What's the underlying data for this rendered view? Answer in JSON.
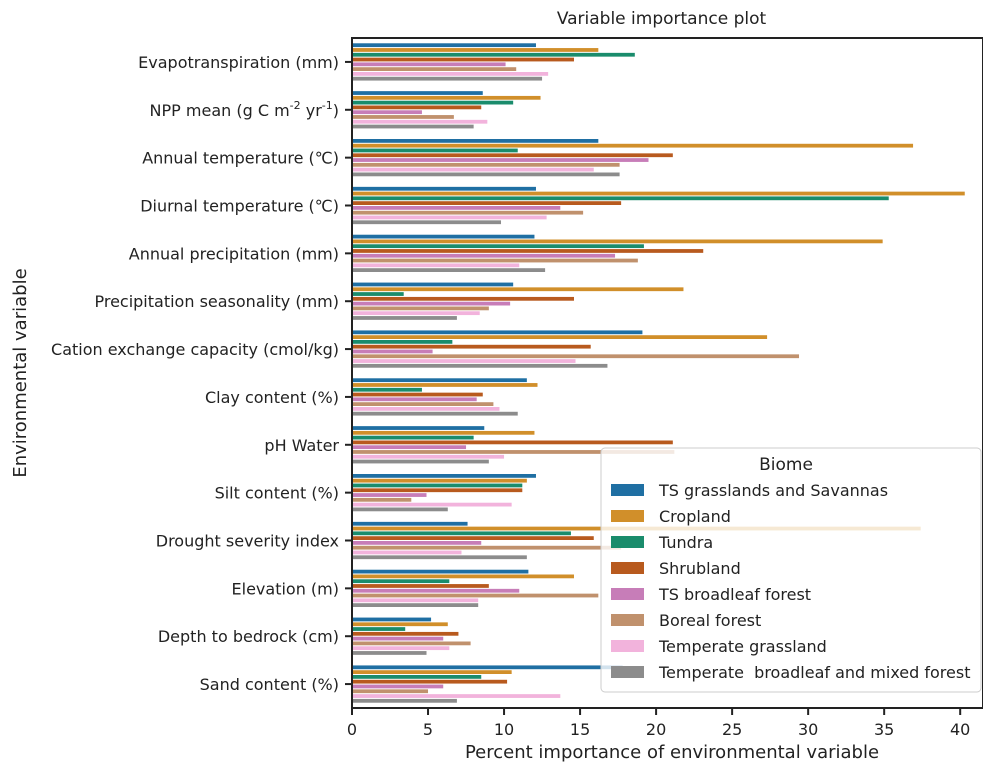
{
  "chart_data": {
    "type": "bar",
    "orientation": "horizontal",
    "title": "Variable importance plot",
    "xlabel": "Percent importance of environmental variable",
    "ylabel": "Environmental variable",
    "xlim": [
      0,
      41.5
    ],
    "xticks": [
      0,
      5,
      10,
      15,
      20,
      25,
      30,
      35,
      40
    ],
    "grid": false,
    "legend": {
      "title": "Biome",
      "placement": "lower-right"
    },
    "categories": [
      "Evapotranspiration (mm)",
      "NPP mean (g C m-2 yr-1)",
      "Annual temperature (℃)",
      "Diurnal temperature (℃)",
      "Annual precipitation (mm)",
      "Precipitation seasonality (mm)",
      "Cation exchange capacity (cmol/kg)",
      "Clay content (%)",
      "pH Water",
      "Silt content (%)",
      "Drought severity index",
      "Elevation (m)",
      "Depth to bedrock (cm)",
      "Sand content (%)"
    ],
    "series": [
      {
        "name": "TS grasslands and Savannas",
        "color": "#1f6fa3",
        "values": [
          12.1,
          8.6,
          16.2,
          12.1,
          12.0,
          10.6,
          19.1,
          11.5,
          8.7,
          12.1,
          7.6,
          11.6,
          5.2,
          17.8
        ]
      },
      {
        "name": "Cropland",
        "color": "#d18f2a",
        "values": [
          16.2,
          12.4,
          36.9,
          40.3,
          34.9,
          21.8,
          27.3,
          12.2,
          12.0,
          11.5,
          37.4,
          14.6,
          6.3,
          10.5
        ]
      },
      {
        "name": "Tundra",
        "color": "#1a8c6c",
        "values": [
          18.6,
          10.6,
          10.9,
          35.3,
          19.2,
          3.4,
          6.6,
          4.6,
          8.0,
          11.2,
          14.4,
          6.4,
          3.5,
          8.5
        ]
      },
      {
        "name": "Shrubland",
        "color": "#b85a1e",
        "values": [
          14.6,
          8.5,
          21.1,
          17.7,
          23.1,
          14.6,
          15.7,
          8.6,
          21.1,
          11.2,
          15.9,
          9.0,
          7.0,
          10.2
        ]
      },
      {
        "name": "TS broadleaf forest",
        "color": "#c77db8",
        "values": [
          10.1,
          4.6,
          19.5,
          13.7,
          17.3,
          10.4,
          5.3,
          8.2,
          7.5,
          4.9,
          8.5,
          11.0,
          6.0,
          6.0
        ]
      },
      {
        "name": "Boreal forest",
        "color": "#c0916d",
        "values": [
          10.8,
          6.7,
          17.6,
          15.2,
          18.8,
          9.0,
          29.4,
          9.3,
          21.2,
          3.9,
          17.7,
          16.2,
          7.8,
          5.0
        ]
      },
      {
        "name": "Temperate grassland",
        "color": "#f2b3dc",
        "values": [
          12.9,
          8.9,
          15.9,
          12.8,
          11.0,
          8.4,
          14.7,
          9.7,
          10.0,
          10.5,
          7.2,
          8.3,
          6.4,
          13.7
        ]
      },
      {
        "name": "Temperate  broadleaf and mixed forest",
        "color": "#8c8c8c",
        "values": [
          12.5,
          8.0,
          17.6,
          9.8,
          12.7,
          6.9,
          16.8,
          10.9,
          9.0,
          6.3,
          11.5,
          8.3,
          4.9,
          6.9
        ]
      }
    ]
  }
}
